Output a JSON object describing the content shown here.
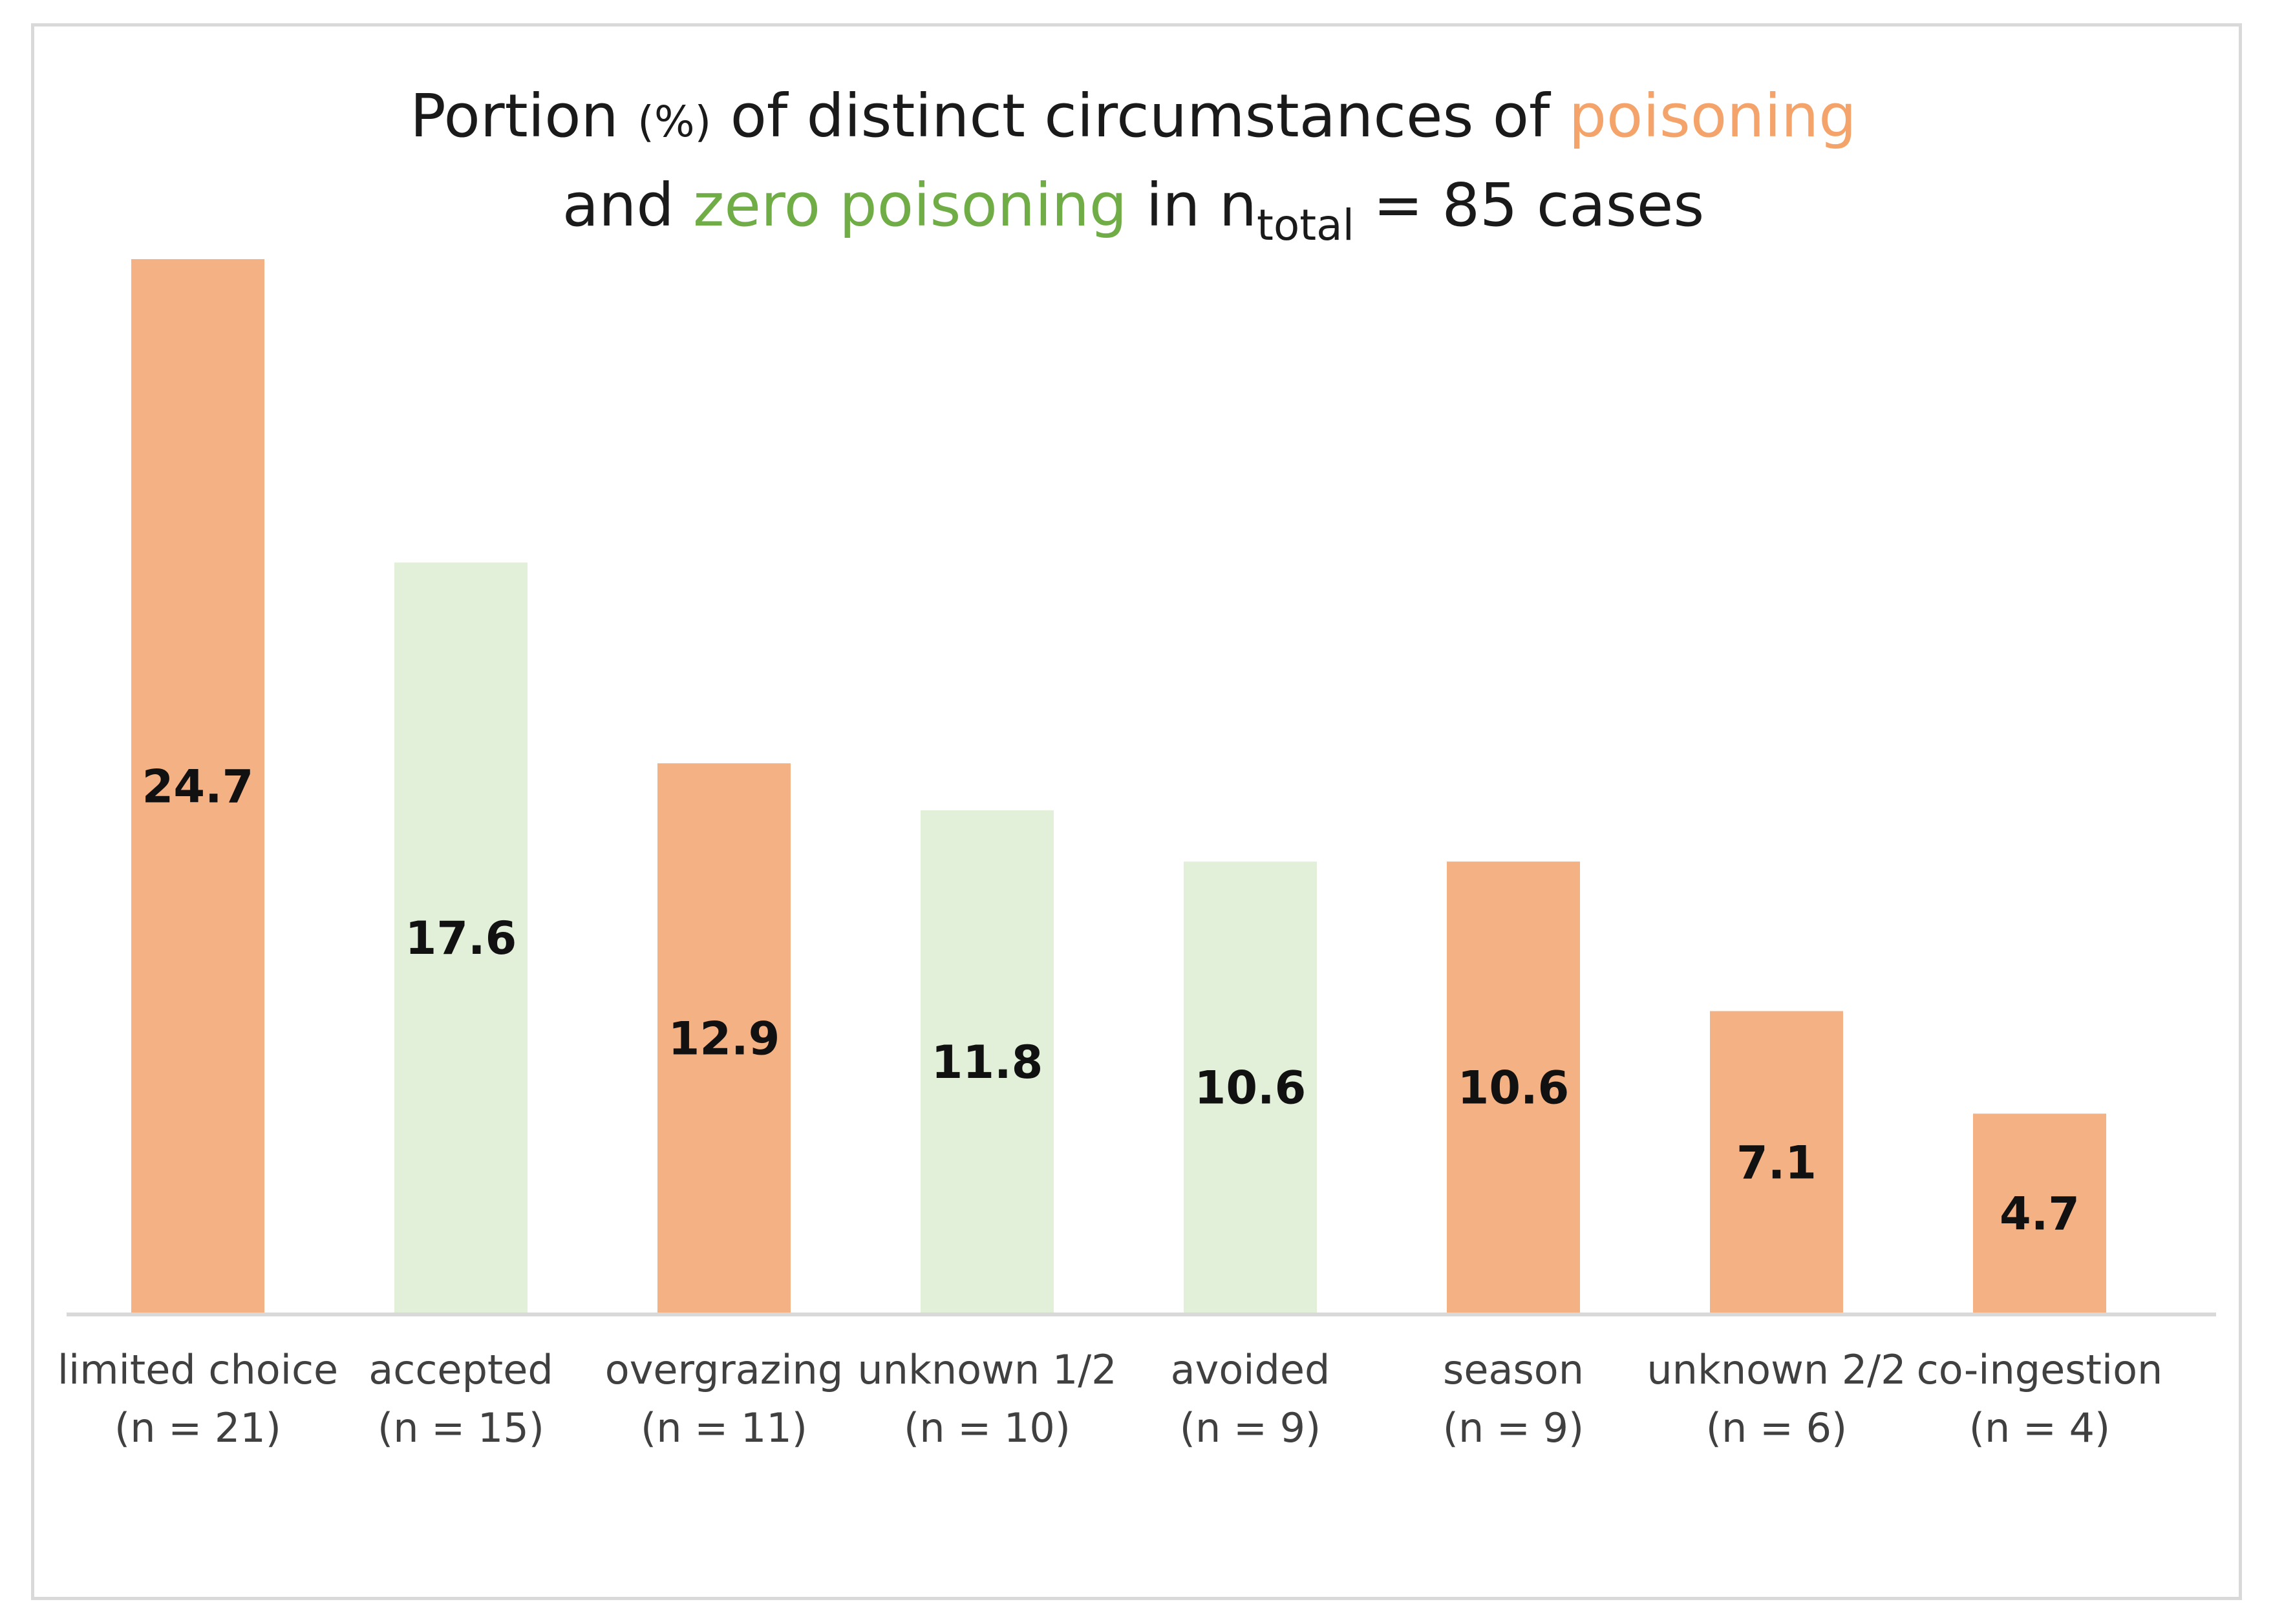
{
  "chart_data": {
    "type": "bar",
    "title": {
      "portion": "Portion",
      "pct": "(%)",
      "of_distinct": "of distinct circumstances of",
      "poisoning": "poisoning",
      "and": "and",
      "zero_poisoning": "zero poisoning",
      "in_n": "in n",
      "total_sub": "total",
      "cases": "= 85 cases"
    },
    "categories": [
      {
        "name": "limited choice",
        "n_label": "(n = 21)",
        "value": 24.7,
        "group": "poisoning"
      },
      {
        "name": "accepted",
        "n_label": "(n = 15)",
        "value": 17.6,
        "group": "zero poisoning"
      },
      {
        "name": "overgrazing",
        "n_label": "(n = 11)",
        "value": 12.9,
        "group": "poisoning"
      },
      {
        "name": "unknown 1/2",
        "n_label": "(n = 10)",
        "value": 11.8,
        "group": "zero poisoning"
      },
      {
        "name": "avoided",
        "n_label": "(n = 9)",
        "value": 10.6,
        "group": "zero poisoning"
      },
      {
        "name": "season",
        "n_label": "(n = 9)",
        "value": 10.6,
        "group": "poisoning"
      },
      {
        "name": "unknown 2/2",
        "n_label": "(n = 6)",
        "value": 7.1,
        "group": "poisoning"
      },
      {
        "name": "co-ingestion",
        "n_label": "(n = 4)",
        "value": 4.7,
        "group": "poisoning"
      }
    ],
    "ylim": [
      0,
      24.7
    ],
    "xlabel": "",
    "ylabel": "",
    "grid": false,
    "colors": {
      "poisoning": "#f4b183",
      "zero poisoning": "#e2f0d9",
      "title_poisoning": "#f4a46a",
      "title_zero": "#70ad47",
      "axis": "#d9d9d9"
    }
  }
}
